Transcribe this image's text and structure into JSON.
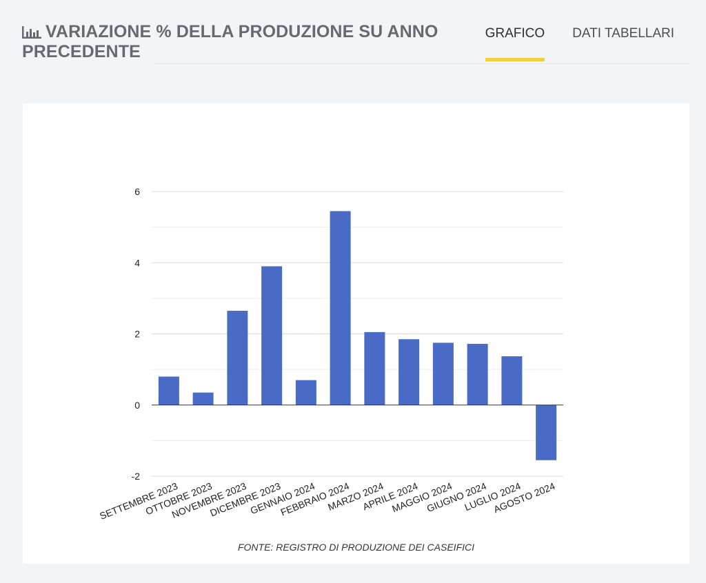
{
  "header": {
    "title_line1": "VARIAZIONE % DELLA PRODUZIONE SU ANNO",
    "title_line2": "PRECEDENTE",
    "tabs": [
      {
        "label": "GRAFICO",
        "active": true
      },
      {
        "label": "DATI TABELLARI",
        "active": false
      }
    ]
  },
  "colors": {
    "bar": "#4a6bc5",
    "tab_active": "#f2cf3c",
    "title": "#666a70",
    "background": "#f2f4f7"
  },
  "chart_data": {
    "type": "bar",
    "categories": [
      "SETTEMBRE 2023",
      "OTTOBRE 2023",
      "NOVEMBRE 2023",
      "DICEMBRE 2023",
      "GENNAIO 2024",
      "FEBBRAIO 2024",
      "MARZO 2024",
      "APRILE 2024",
      "MAGGIO 2024",
      "GIUGNO 2024",
      "LUGLIO 2024",
      "AGOSTO 2024"
    ],
    "values": [
      0.8,
      0.35,
      2.65,
      3.9,
      0.7,
      5.45,
      2.05,
      1.85,
      1.75,
      1.72,
      1.37,
      -1.55
    ],
    "ylim": [
      -2,
      6
    ],
    "yticks": [
      "6",
      "4",
      "2",
      "0",
      "-2"
    ],
    "grid": true,
    "source": "FONTE: REGISTRO DI PRODUZIONE DEI CASEIFICI"
  }
}
